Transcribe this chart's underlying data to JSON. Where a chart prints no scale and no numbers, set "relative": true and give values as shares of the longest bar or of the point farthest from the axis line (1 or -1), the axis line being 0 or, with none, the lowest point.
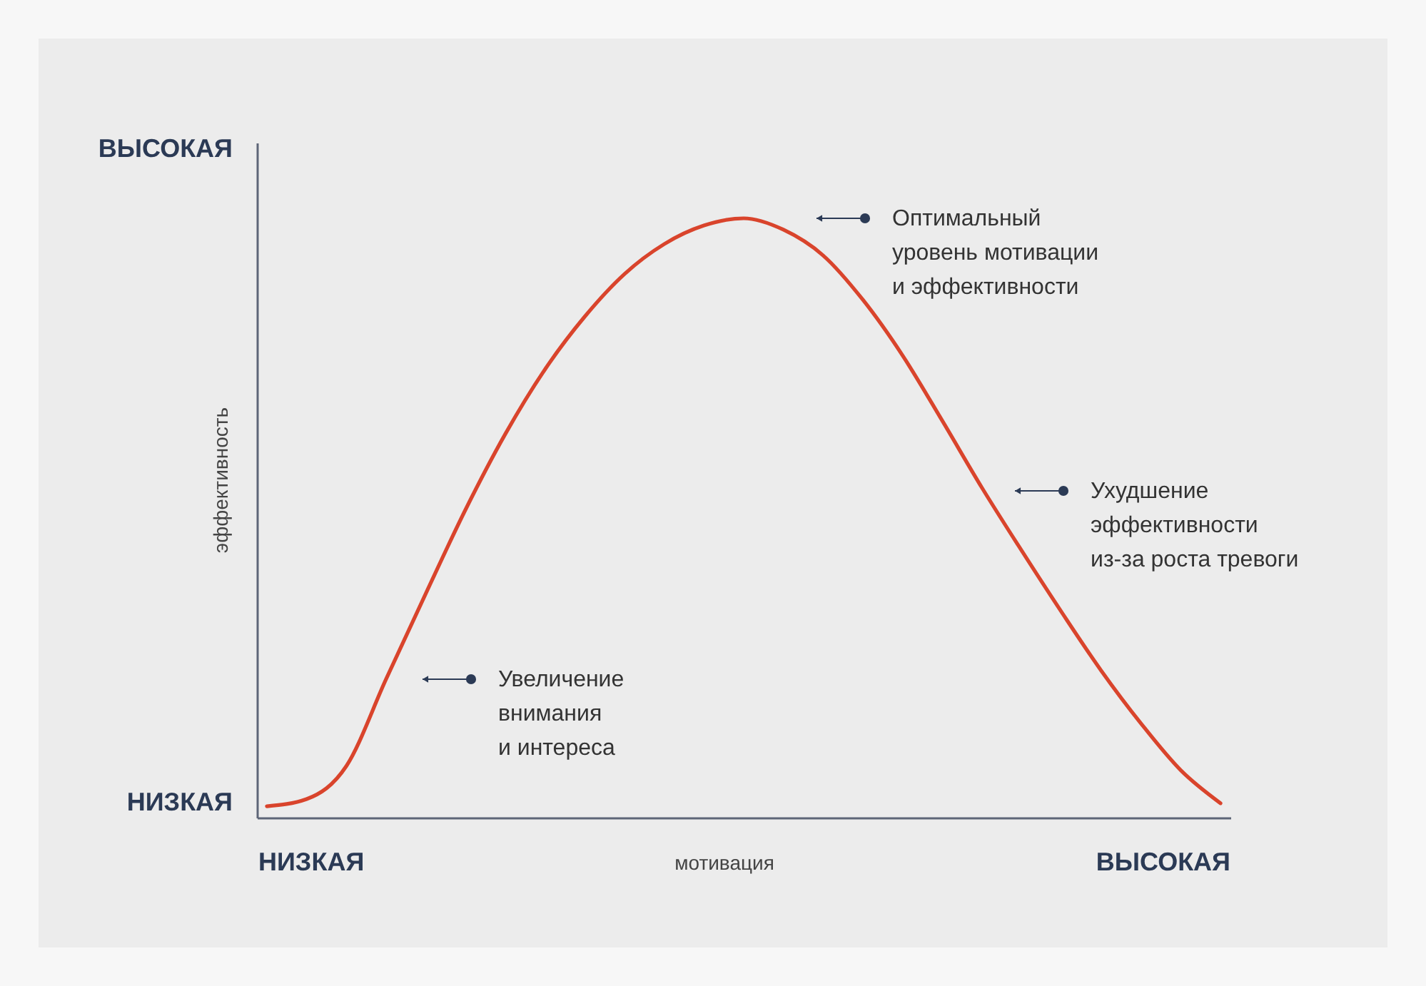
{
  "chart_data": {
    "type": "line",
    "relative": true,
    "xlabel": "мотивация",
    "ylabel": "эффективность",
    "categories": [
      null,
      null,
      null,
      null,
      null,
      null,
      null,
      null,
      null,
      null,
      null,
      null,
      null,
      null,
      null,
      null,
      null,
      null,
      null,
      null,
      null,
      null,
      null,
      null,
      null
    ],
    "series": [
      {
        "color": "#d9442c",
        "values": [
          0.019,
          0.031,
          0.086,
          0.231,
          0.374,
          0.514,
          0.64,
          0.748,
          0.836,
          0.907,
          0.957,
          0.988,
          1,
          0.981,
          0.938,
          0.864,
          0.771,
          0.662,
          0.55,
          0.445,
          0.343,
          0.245,
          0.157,
          0.079,
          0.024
        ]
      }
    ],
    "annotations": [
      "НИЗКАЯ",
      "ВЫСОКАЯ",
      "НИЗКАЯ",
      "ВЫСОКАЯ",
      "Увеличение\nвнимания\nи интереса",
      "Оптимальный\nуровень мотивации\nи эффективности",
      "Ухудшение\nэффективности\nиз-за роста тревоги"
    ],
    "grid": false,
    "marker": "none",
    "line_style": "solid"
  }
}
